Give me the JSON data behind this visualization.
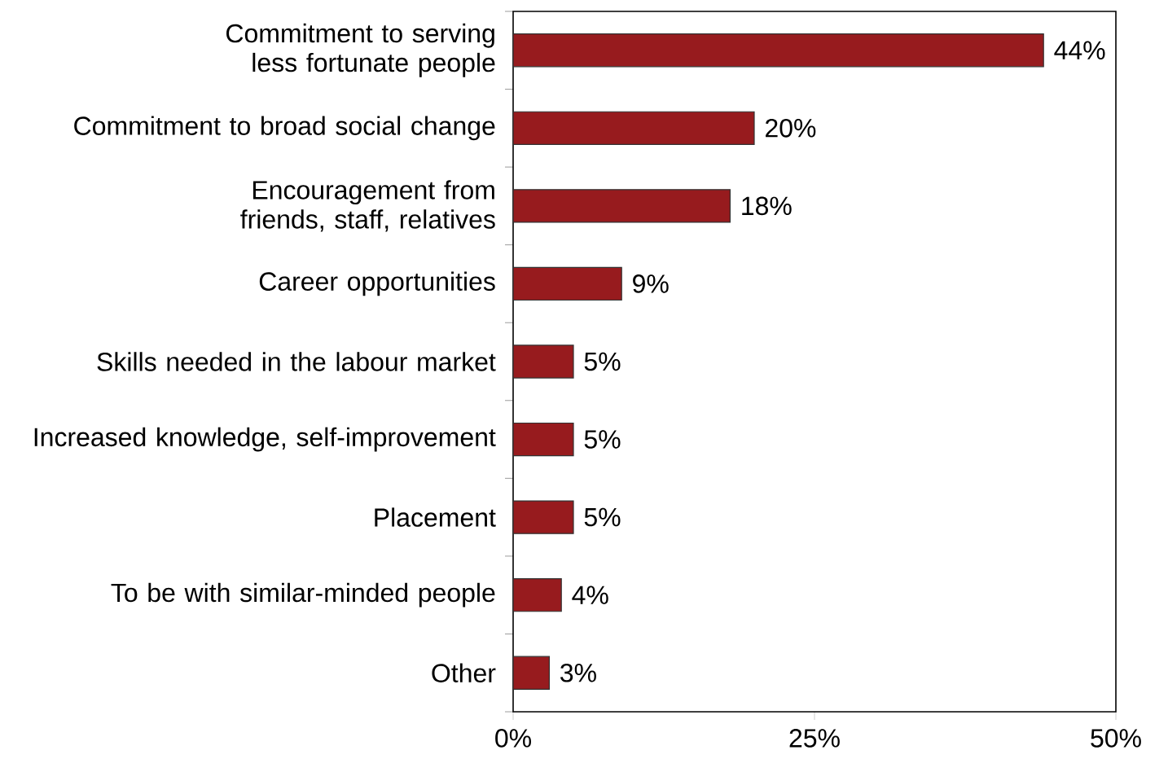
{
  "chart_data": {
    "type": "bar",
    "orientation": "horizontal",
    "categories": [
      "Commitment to serving less fortunate people",
      "Commitment to broad social change",
      "Encouragement from friends, staff, relatives",
      "Career opportunities",
      "Skills needed in the labour market",
      "Increased knowledge, self-improvement",
      "Placement",
      "To be with similar-minded people",
      "Other"
    ],
    "values": [
      44,
      20,
      18,
      9,
      5,
      5,
      5,
      4,
      3
    ],
    "value_labels": [
      "44%",
      "20%",
      "18%",
      "9%",
      "5%",
      "5%",
      "5%",
      "4%",
      "3%"
    ],
    "color": "#971b1e",
    "xlim": [
      0,
      50
    ],
    "xticks": [
      {
        "value": 0,
        "label": "0%"
      },
      {
        "value": 25,
        "label": "25%"
      },
      {
        "value": 50,
        "label": "50%"
      }
    ],
    "grid": false
  }
}
